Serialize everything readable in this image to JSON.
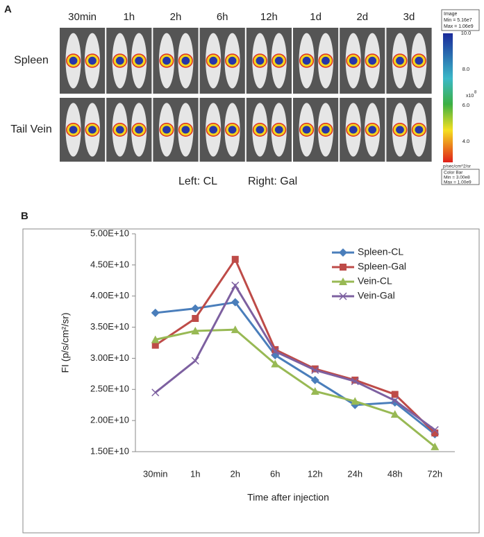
{
  "panel_a": {
    "label": "A",
    "time_labels": [
      "30min",
      "1h",
      "2h",
      "6h",
      "12h",
      "1d",
      "2d",
      "3d"
    ],
    "row_labels": [
      "Spleen",
      "Tail Vein"
    ],
    "caption_left": "Left: CL",
    "caption_right": "Right: Gal",
    "colorbar": {
      "image_title": "Image",
      "image_min": "Min = 5.16e7",
      "image_max": "Max = 1.06e9",
      "ticks": [
        "10.0",
        "8.0",
        "6.0",
        "4.0"
      ],
      "exponent": "x10",
      "exponent_power": "8",
      "units": "p/sec/cm^2/sr",
      "bar_title": "Color Bar",
      "bar_min": "Min = 3.00e8",
      "bar_max": "Max = 1.00e9"
    }
  },
  "chart_data": {
    "type": "line",
    "panel_label": "B",
    "x_label": "Time after injection",
    "y_label": "FI (p/s/cm²/sr)",
    "categories": [
      "30min",
      "1h",
      "2h",
      "6h",
      "12h",
      "24h",
      "48h",
      "72h"
    ],
    "ylim": [
      15000000000.0,
      50000000000.0
    ],
    "yticks": [
      {
        "value": 15000000000.0,
        "label": "1.50E+10"
      },
      {
        "value": 20000000000.0,
        "label": "2.00E+10"
      },
      {
        "value": 25000000000.0,
        "label": "2.50E+10"
      },
      {
        "value": 30000000000.0,
        "label": "3.00E+10"
      },
      {
        "value": 35000000000.0,
        "label": "3.50E+10"
      },
      {
        "value": 40000000000.0,
        "label": "4.00E+10"
      },
      {
        "value": 45000000000.0,
        "label": "4.50E+10"
      },
      {
        "value": 50000000000.0,
        "label": "5.00E+10"
      }
    ],
    "legend": "top-right",
    "series": [
      {
        "name": "Spleen-CL",
        "color": "#4a7ebb",
        "marker": "diamond",
        "values": [
          37300000000.0,
          38000000000.0,
          39000000000.0,
          30500000000.0,
          26500000000.0,
          22500000000.0,
          22900000000.0,
          17800000000.0
        ]
      },
      {
        "name": "Spleen-Gal",
        "color": "#be4b48",
        "marker": "square",
        "values": [
          32100000000.0,
          36400000000.0,
          45900000000.0,
          31400000000.0,
          28300000000.0,
          26500000000.0,
          24200000000.0,
          18000000000.0
        ]
      },
      {
        "name": "Vein-CL",
        "color": "#98b954",
        "marker": "triangle",
        "values": [
          33000000000.0,
          34400000000.0,
          34600000000.0,
          29100000000.0,
          24700000000.0,
          23100000000.0,
          21000000000.0,
          15800000000.0
        ]
      },
      {
        "name": "Vein-Gal",
        "color": "#7d60a0",
        "marker": "x",
        "values": [
          24500000000.0,
          29600000000.0,
          41700000000.0,
          31100000000.0,
          28100000000.0,
          26300000000.0,
          23200000000.0,
          18500000000.0
        ]
      }
    ]
  }
}
